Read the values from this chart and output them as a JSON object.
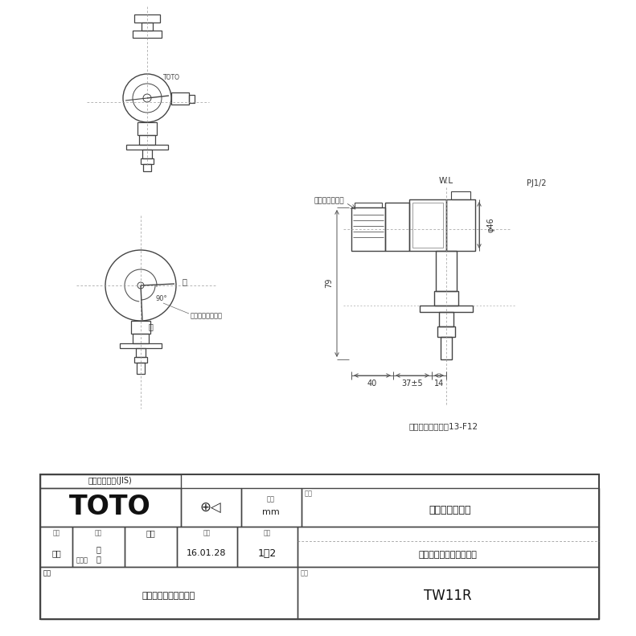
{
  "bg_color": "#ffffff",
  "line_color": "#444444",
  "table_header": "水道法適合品(JIS)",
  "toto_text": "TOTO",
  "unit_label": "単位",
  "unit_value": "mm",
  "name_label": "名称",
  "name_value": "洗濯機用横水栓",
  "drawing_label": "製図",
  "check_label": "検図",
  "date_label": "日付",
  "date_value": "16.01.28",
  "scale_label": "尺度",
  "scale_value": "1：2",
  "drafter1": "小林",
  "drafter2": "（都）",
  "checker1": "今",
  "checker2": "宮",
  "approver": "廣村",
  "subtitle": "ホース接続形、緊急止水",
  "note_label": "備考",
  "note_value": "緊急止水弁・逆止弁付",
  "drawing_num_label": "図番",
  "drawing_num": "TW11R",
  "dim1": "40",
  "dim2": "37±5",
  "dim3": "14",
  "dim_height": "79",
  "dim_dia": "φ46",
  "wl_label": "W.L",
  "pj_label": "PJ1/2",
  "color_label": "ペールホワイト",
  "closed_label": "閉",
  "open_label": "開",
  "angle_label": "ハンドル回転角度",
  "gov_label": "国土交通省記号：13-F12",
  "toto_label_top": "TOTO"
}
